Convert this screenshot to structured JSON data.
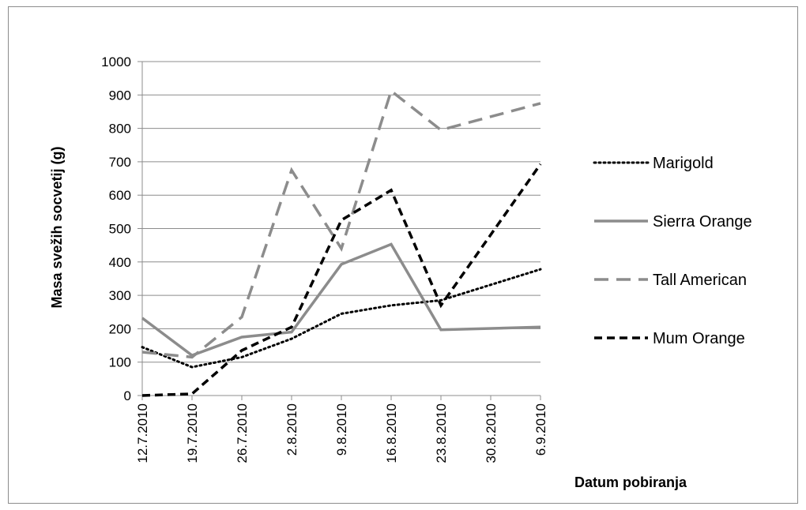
{
  "chart_data": {
    "type": "line",
    "title": "",
    "xlabel": "Datum pobiranja",
    "ylabel": "Masa svežih socvetij (g)",
    "ylim": [
      0,
      1000
    ],
    "yticks": [
      "0",
      "100",
      "200",
      "300",
      "400",
      "500",
      "600",
      "700",
      "800",
      "900",
      "1000"
    ],
    "categories": [
      "12.7.2010",
      "19.7.2010",
      "26.7.2010",
      "2.8.2010",
      "9.8.2010",
      "16.8.2010",
      "23.8.2010",
      "30.8.2010",
      "6.9.2010"
    ],
    "grid": true,
    "legend_position": "right",
    "series": [
      {
        "name": "Marigold",
        "style": "dotted",
        "color": "#000000",
        "values": [
          145,
          85,
          115,
          170,
          245,
          270,
          285,
          null,
          378
        ]
      },
      {
        "name": "Sierra Orange",
        "style": "solid",
        "color": "#8c8c8c",
        "values": [
          232,
          120,
          175,
          190,
          393,
          453,
          197,
          null,
          205
        ]
      },
      {
        "name": "Tall American",
        "style": "long-dash",
        "color": "#8c8c8c",
        "values": [
          130,
          115,
          235,
          675,
          440,
          912,
          795,
          null,
          875
        ]
      },
      {
        "name": "Mum Orange",
        "style": "dash",
        "color": "#000000",
        "values": [
          0,
          5,
          135,
          205,
          525,
          615,
          270,
          null,
          693
        ]
      }
    ]
  }
}
